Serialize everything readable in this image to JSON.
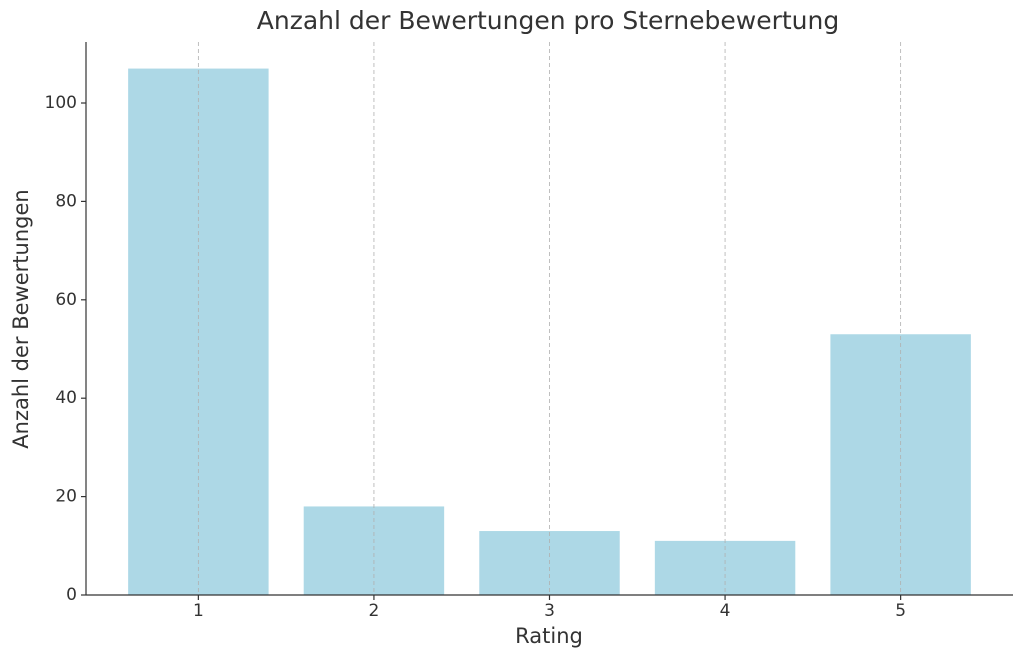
{
  "chart_data": {
    "type": "bar",
    "title": "Anzahl der Bewertungen pro Sternebewertung",
    "x_label": "Rating",
    "y_label": "Anzahl der Bewertungen",
    "x": [
      1,
      2,
      3,
      4,
      5
    ],
    "values": [
      107,
      18,
      13,
      11,
      53
    ],
    "color": "#add8e6",
    "xlim": [
      0.36,
      5.64
    ],
    "xticks": [
      1,
      2,
      3,
      4,
      5
    ],
    "ylim": [
      0,
      112.4
    ],
    "yticks": [
      0,
      20,
      40,
      60,
      80,
      100
    ],
    "grid": "x"
  }
}
